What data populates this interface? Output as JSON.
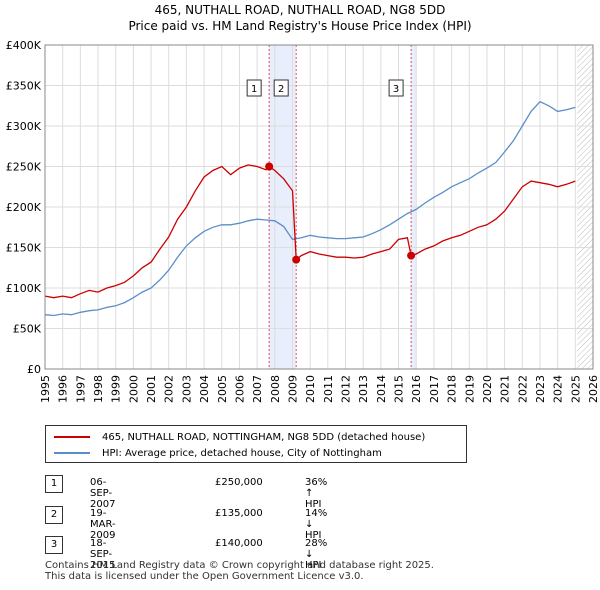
{
  "title_line1": "465, NUTHALL ROAD, NUTHALL ROAD, NG8 5DD",
  "title_line2": "Price paid vs. HM Land Registry's House Price Index (HPI)",
  "chart_data": {
    "type": "line",
    "xlabel": "",
    "ylabel": "",
    "xlim": [
      1995,
      2026
    ],
    "ylim": [
      0,
      400000
    ],
    "x_ticks": [
      "1995",
      "1996",
      "1997",
      "1998",
      "1999",
      "2000",
      "2001",
      "2002",
      "2003",
      "2004",
      "2005",
      "2006",
      "2007",
      "2008",
      "2009",
      "2010",
      "2011",
      "2012",
      "2013",
      "2014",
      "2015",
      "2016",
      "2017",
      "2018",
      "2019",
      "2020",
      "2021",
      "2022",
      "2023",
      "2024",
      "2025",
      "2026"
    ],
    "y_ticks": [
      "£0",
      "£50K",
      "£100K",
      "£150K",
      "£200K",
      "£250K",
      "£300K",
      "£350K",
      "£400K"
    ],
    "y_tick_values": [
      0,
      50000,
      100000,
      150000,
      200000,
      250000,
      300000,
      350000,
      400000
    ],
    "grid": true,
    "series": [
      {
        "name": "465, NUTHALL ROAD, NOTTINGHAM, NG8 5DD (detached house)",
        "color": "#cc0000",
        "x": [
          1995.0,
          1995.5,
          1996.0,
          1996.5,
          1997.0,
          1997.5,
          1998.0,
          1998.5,
          1999.0,
          1999.5,
          2000.0,
          2000.5,
          2001.0,
          2001.5,
          2002.0,
          2002.5,
          2003.0,
          2003.5,
          2004.0,
          2004.5,
          2005.0,
          2005.5,
          2006.0,
          2006.5,
          2007.0,
          2007.5,
          2007.68,
          2008.0,
          2008.5,
          2009.0,
          2009.21,
          2009.5,
          2010.0,
          2010.5,
          2011.0,
          2011.5,
          2012.0,
          2012.5,
          2013.0,
          2013.5,
          2014.0,
          2014.5,
          2015.0,
          2015.5,
          2015.71,
          2016.0,
          2016.5,
          2017.0,
          2017.5,
          2018.0,
          2018.5,
          2019.0,
          2019.5,
          2020.0,
          2020.5,
          2021.0,
          2021.5,
          2022.0,
          2022.5,
          2023.0,
          2023.5,
          2024.0,
          2024.5,
          2025.0
        ],
        "values": [
          90000,
          88000,
          90000,
          88000,
          93000,
          97000,
          95000,
          100000,
          103000,
          107000,
          115000,
          125000,
          132000,
          148000,
          163000,
          185000,
          200000,
          220000,
          237000,
          245000,
          250000,
          240000,
          248000,
          252000,
          250000,
          246000,
          250000,
          245000,
          235000,
          220000,
          135000,
          140000,
          145000,
          142000,
          140000,
          138000,
          138000,
          137000,
          138000,
          142000,
          145000,
          148000,
          160000,
          162000,
          140000,
          142000,
          148000,
          152000,
          158000,
          162000,
          165000,
          170000,
          175000,
          178000,
          185000,
          195000,
          210000,
          225000,
          232000,
          230000,
          228000,
          225000,
          228000,
          232000
        ]
      },
      {
        "name": "HPI: Average price, detached house, City of Nottingham",
        "color": "#5b8ec8",
        "x": [
          1995.0,
          1995.5,
          1996.0,
          1996.5,
          1997.0,
          1997.5,
          1998.0,
          1998.5,
          1999.0,
          1999.5,
          2000.0,
          2000.5,
          2001.0,
          2001.5,
          2002.0,
          2002.5,
          2003.0,
          2003.5,
          2004.0,
          2004.5,
          2005.0,
          2005.5,
          2006.0,
          2006.5,
          2007.0,
          2007.5,
          2008.0,
          2008.5,
          2009.0,
          2009.5,
          2010.0,
          2010.5,
          2011.0,
          2011.5,
          2012.0,
          2012.5,
          2013.0,
          2013.5,
          2014.0,
          2014.5,
          2015.0,
          2015.5,
          2016.0,
          2016.5,
          2017.0,
          2017.5,
          2018.0,
          2018.5,
          2019.0,
          2019.5,
          2020.0,
          2020.5,
          2021.0,
          2021.5,
          2022.0,
          2022.5,
          2023.0,
          2023.5,
          2024.0,
          2024.5,
          2025.0
        ],
        "values": [
          67000,
          66000,
          68000,
          67000,
          70000,
          72000,
          73000,
          76000,
          78000,
          82000,
          88000,
          95000,
          100000,
          110000,
          122000,
          138000,
          152000,
          162000,
          170000,
          175000,
          178000,
          178000,
          180000,
          183000,
          185000,
          184000,
          183000,
          176000,
          160000,
          162000,
          165000,
          163000,
          162000,
          161000,
          161000,
          162000,
          163000,
          167000,
          172000,
          178000,
          185000,
          192000,
          197000,
          205000,
          212000,
          218000,
          225000,
          230000,
          235000,
          242000,
          248000,
          255000,
          268000,
          282000,
          300000,
          318000,
          330000,
          325000,
          318000,
          320000,
          323000
        ]
      }
    ],
    "transactions": [
      {
        "num": "1",
        "x": 2007.68,
        "price": 250000,
        "date": "06-SEP-2007",
        "price_label": "£250,000",
        "rel": "36% ↑ HPI"
      },
      {
        "num": "2",
        "x": 2009.21,
        "price": 135000,
        "date": "19-MAR-2009",
        "price_label": "£135,000",
        "rel": "14% ↓ HPI"
      },
      {
        "num": "3",
        "x": 2015.71,
        "price": 140000,
        "date": "18-SEP-2015",
        "price_label": "£140,000",
        "rel": "28% ↓ HPI"
      }
    ],
    "shaded_periods": [
      [
        2007.68,
        2009.21
      ],
      [
        2015.71,
        2016.0
      ]
    ],
    "projection_start": 2025.1
  },
  "legend": {
    "series1": "465, NUTHALL ROAD, NOTTINGHAM, NG8 5DD (detached house)",
    "series2": "HPI: Average price, detached house, City of Nottingham"
  },
  "footer_line1": "Contains HM Land Registry data © Crown copyright and database right 2025.",
  "footer_line2": "This data is licensed under the Open Government Licence v3.0."
}
